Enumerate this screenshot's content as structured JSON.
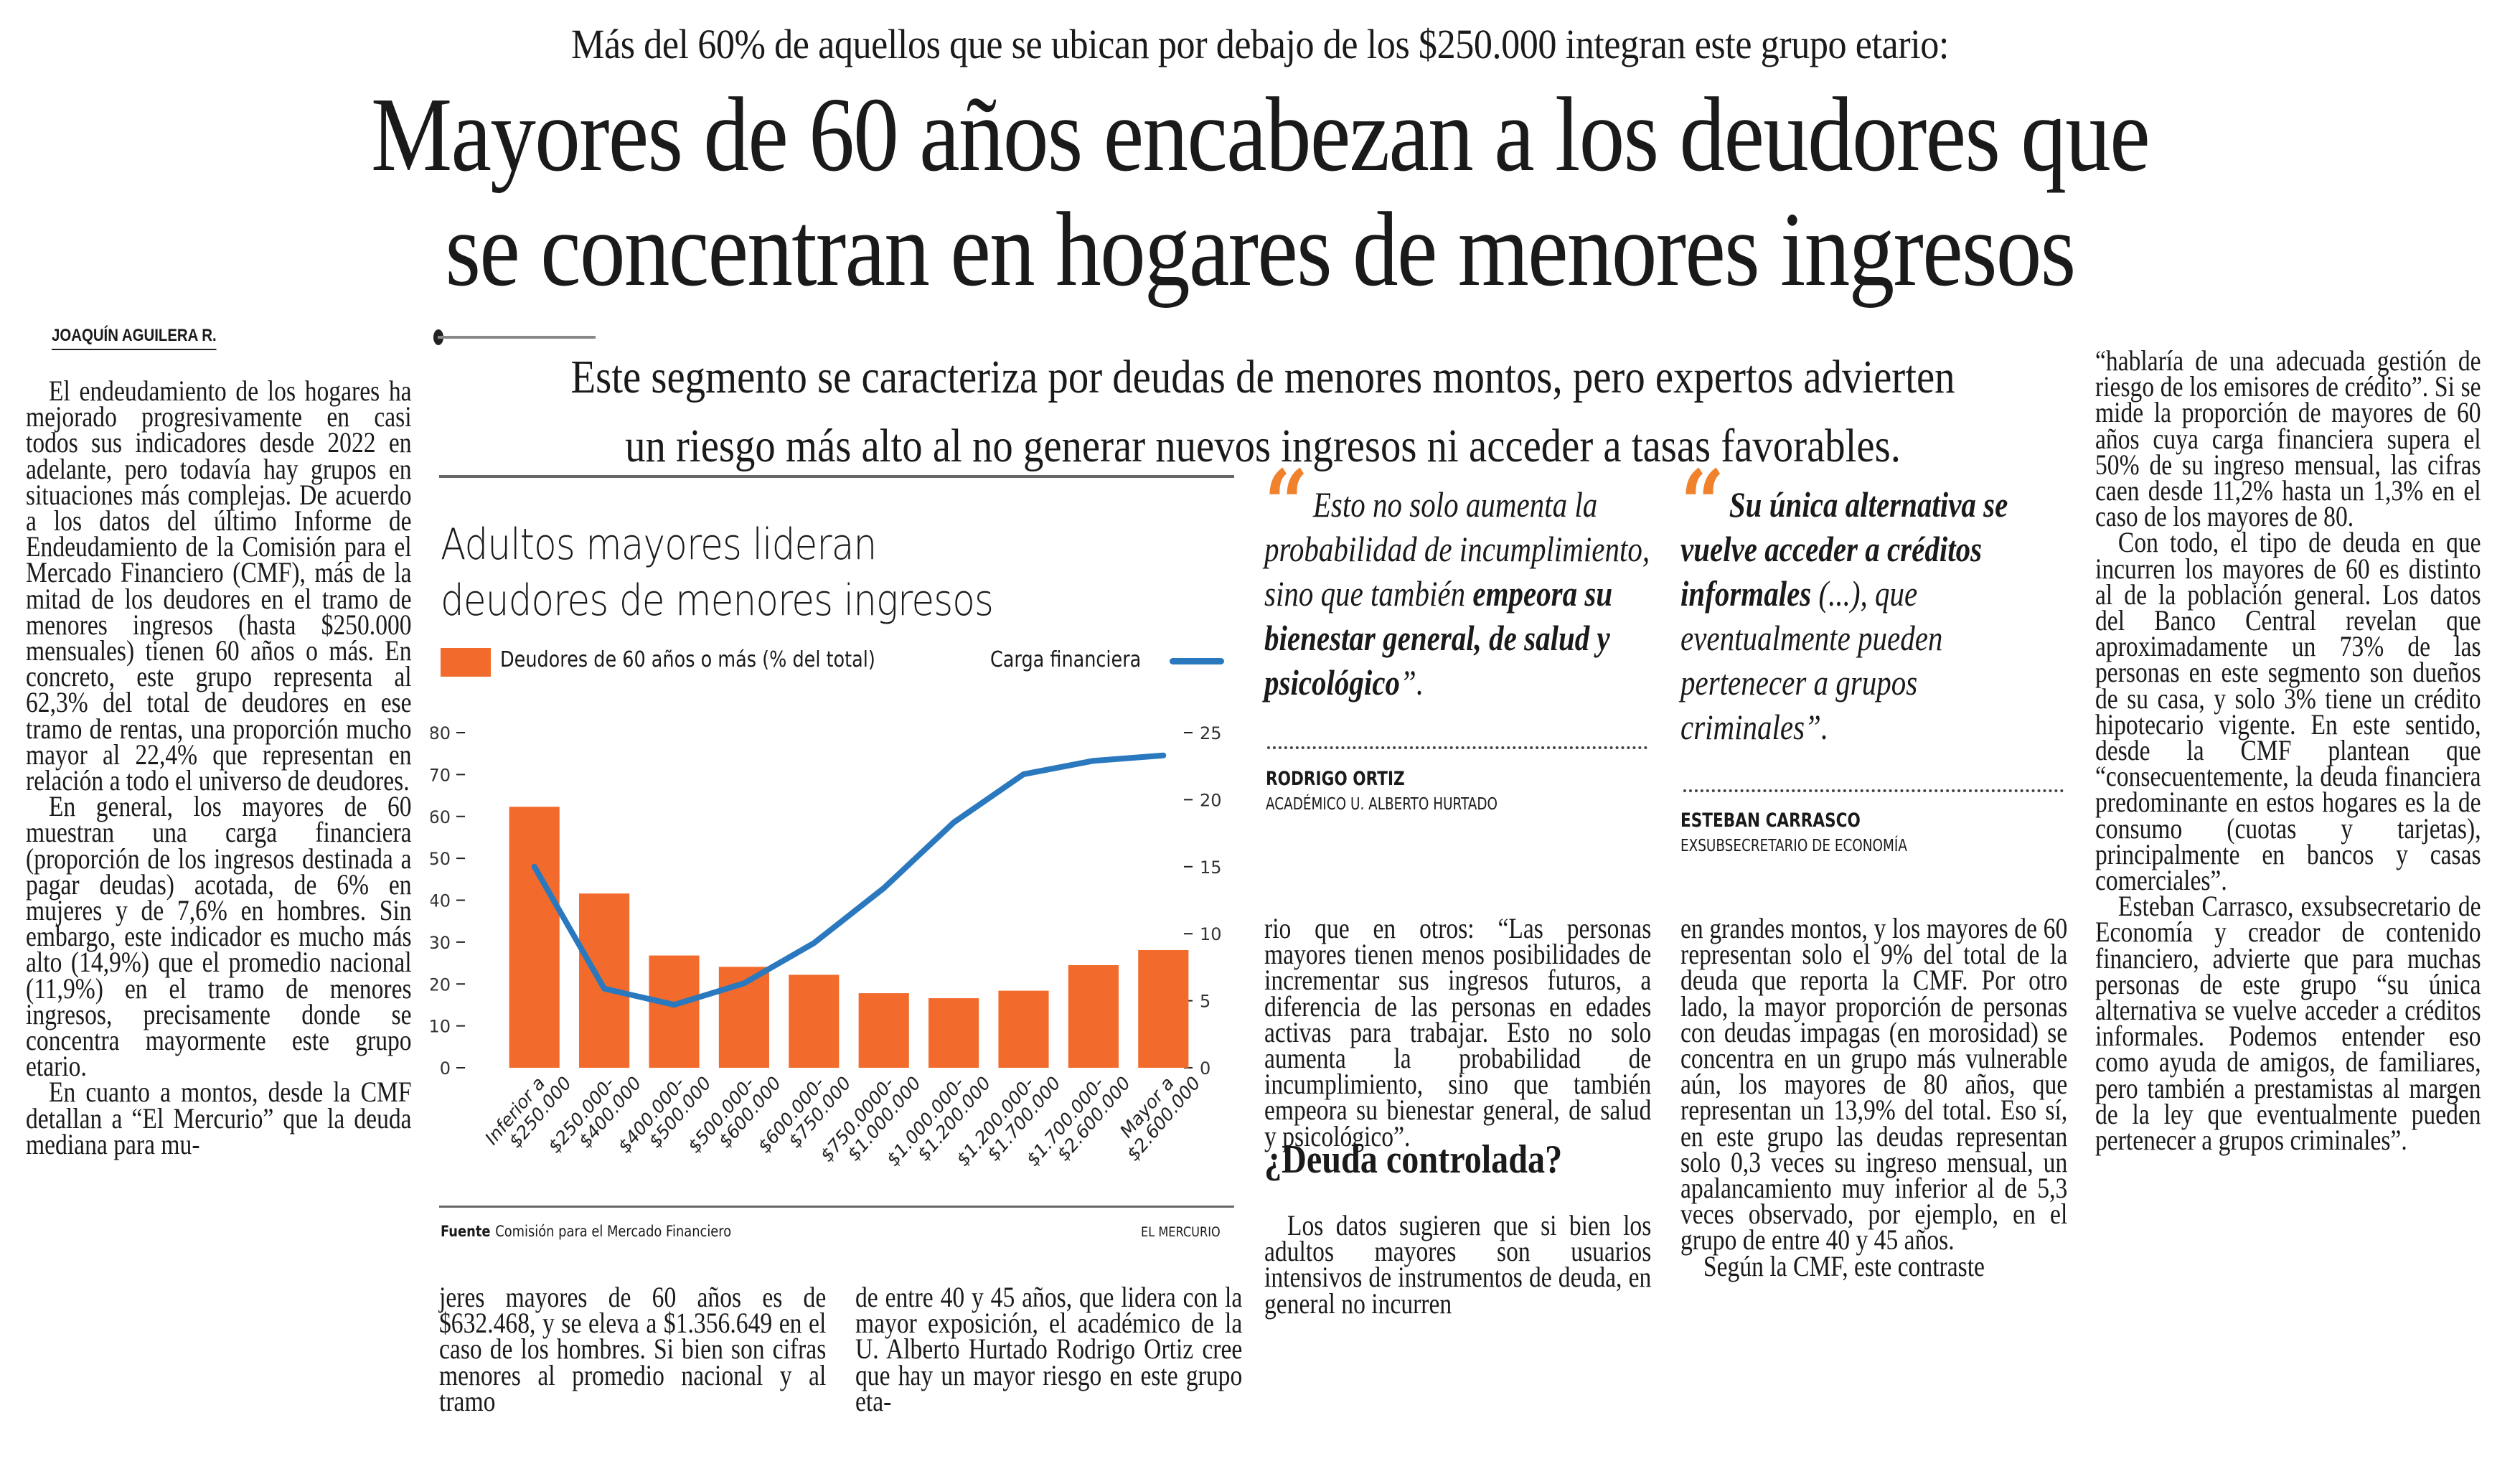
{
  "article": {
    "kicker": "Más del 60% de aquellos que se ubican por debajo de los $250.000 integran este grupo etario:",
    "headline_lines": [
      "Mayores de 60 años encabezan a los deudores que",
      "se concentran en hogares de menores ingresos"
    ],
    "byline": "JOAQUÍN AGUILERA R.",
    "deck_lines": [
      "Este segmento se caracteriza por deudas de menores montos, pero expertos advierten",
      "un riesgo más alto al no generar nuevos ingresos ni acceder a tasas favorables."
    ],
    "col1": [
      "El endeudamiento de los hogares ha mejorado progresivamente en casi todos sus indicadores desde 2022 en adelante, pero todavía hay grupos en situaciones más complejas. De acuerdo a los datos del último Informe de Endeudamiento de la Comisión para el Mercado Financiero (CMF), más de la mitad de los deudores en el tramo de menores ingresos (hasta $250.000 mensuales) tienen 60 años o más. En concreto, este grupo representa al 62,3% del total de deudores en ese tramo de rentas, una proporción mucho mayor al 22,4% que representan en relación a todo el universo de deudores.",
      "En general, los mayores de 60 muestran una carga financiera (proporción de los ingresos destinada a pagar deudas) acotada, de 6% en mujeres y de 7,6% en hombres. Sin embargo, este indicador es mucho más alto (14,9%) que el promedio nacional (11,9%) en el tramo de menores ingresos, precisamente donde se concentra mayormente este grupo etario.",
      "En cuanto a montos, desde la CMF detallan a “El Mercurio” que la deuda mediana para mu-"
    ],
    "col2": "jeres mayores de 60 años es de $632.468, y se eleva a $1.356.649 en el caso de los hombres. Si bien son cifras menores al promedio nacional y al tramo",
    "col3": "de entre 40 y 45 años, que lidera con la mayor exposición, el académico de la U. Alberto Hurtado Rodrigo Ortiz cree que hay un mayor riesgo en este grupo eta-",
    "col4a": "rio que en otros: “Las personas mayores tienen menos posibilidades de incrementar sus ingresos futuros, a diferencia de las personas en edades activas para trabajar. Esto no solo aumenta la probabilidad de incumplimiento, sino que también empeora su bienestar general, de salud y psicológico”.",
    "subhead": "¿Deuda controlada?",
    "col4b": "Los datos sugieren que si bien los adultos mayores son usuarios intensivos de instrumentos de deuda, en general no incurren",
    "col5": [
      "en grandes montos, y los mayores de 60 representan solo el 9% del total de la deuda que reporta la CMF. Por otro lado, la mayor proporción de personas con deudas impagas (en morosidad) se concentra en un grupo más vulnerable aún, los mayores de 80 años, que representan un 13,9% del total. Eso sí, en este grupo las deudas representan solo 0,3 veces su ingreso mensual, un apalancamiento muy inferior al de 5,3 veces observado, por ejemplo, en el grupo de entre 40 y 45 años.",
      "Según la CMF, este contraste"
    ],
    "col6": [
      "“hablaría de una adecuada gestión de riesgo de los emisores de crédito”. Si se mide la proporción de mayores de 60 años cuya carga financiera supera el 50% de su ingreso mensual, las cifras caen desde 11,2% hasta un 1,3% en el caso de los mayores de 80.",
      "Con todo, el tipo de deuda en que incurren los mayores de 60 es distinto al de la población general. Los datos del Banco Central revelan que aproximadamente un 73% de las personas en este segmento son dueños de su casa, y solo 3% tiene un crédito hipotecario vigente. En este sentido, desde la CMF plantean que “consecuentemente, la deuda financiera predominante en estos hogares es la de consumo (cuotas y tarjetas), principalmente en bancos y casas comerciales”.",
      "Esteban Carrasco, exsubsecretario de Economía y creador de contenido financiero, advierte que para muchas personas de este grupo “su única alternativa se vuelve acceder a créditos informales. Podemos entender eso como ayuda de amigos, de familiares, pero también a prestamistas al margen de la ley que eventualmente pueden pertenecer a grupos criminales”."
    ]
  },
  "quotes": [
    {
      "mark": "“",
      "parts": [
        {
          "text": "Esto no solo aumenta la probabilidad de incumplimiento, sino que también ",
          "bold": false
        },
        {
          "text": "empeora su bienestar general, de salud y psicológico",
          "bold": true
        },
        {
          "text": "”.",
          "bold": false
        }
      ],
      "name": "RODRIGO ORTIZ",
      "role": "ACADÉMICO U. ALBERTO HURTADO"
    },
    {
      "mark": "“",
      "parts": [
        {
          "text": "Su única alternativa se vuelve acceder a créditos informales",
          "bold": true
        },
        {
          "text": " (...), que eventualmente pueden pertenecer a grupos criminales”.",
          "bold": false
        }
      ],
      "name": "ESTEBAN CARRASCO",
      "role": "EXSUBSECRETARIO DE ECONOMÍA"
    }
  ],
  "chart_data": {
    "type": "bar",
    "title": "Adultos mayores lideran deudores de menores ingresos",
    "title_lines": [
      "Adultos mayores lideran",
      "deudores de menores ingresos"
    ],
    "categories": [
      [
        "Inferior a",
        "$250.000"
      ],
      [
        "$250.000-",
        "$400.000"
      ],
      [
        "$400.000-",
        "$500.000"
      ],
      [
        "$500.000-",
        "$600.000"
      ],
      [
        "$600.000-",
        "$750.000"
      ],
      [
        "$750.0000-",
        "$1.000.000"
      ],
      [
        "$1.000.000-",
        "$1.200.000"
      ],
      [
        "$1.200.000-",
        "$1.700.000"
      ],
      [
        "$1.700.000-",
        "$2.600.000"
      ],
      [
        "Mayor a",
        "$2.600.000"
      ]
    ],
    "series": [
      {
        "name": "Deudores de 60 años o más (% del total)",
        "type": "bar",
        "axis": "left",
        "color": "#f26b2c",
        "values": [
          62.3,
          41.6,
          26.8,
          24.1,
          22.2,
          17.8,
          16.6,
          18.4,
          24.5,
          28.1
        ]
      },
      {
        "name": "Carga financiera",
        "type": "line",
        "axis": "right",
        "color": "#2a78bd",
        "values": [
          15.0,
          5.9,
          4.7,
          6.3,
          9.3,
          13.4,
          18.3,
          21.9,
          22.9,
          23.3
        ]
      }
    ],
    "y_left": {
      "ticks": [
        0,
        10,
        20,
        30,
        40,
        50,
        60,
        70,
        80
      ],
      "range": [
        0,
        80
      ]
    },
    "y_right": {
      "ticks": [
        0,
        5,
        10,
        15,
        20,
        25
      ],
      "range": [
        0,
        25
      ]
    },
    "legend": "top",
    "grid": false,
    "source_label": "Fuente",
    "source": "Comisión para el Mercado Financiero",
    "brand": "EL MERCURIO"
  }
}
